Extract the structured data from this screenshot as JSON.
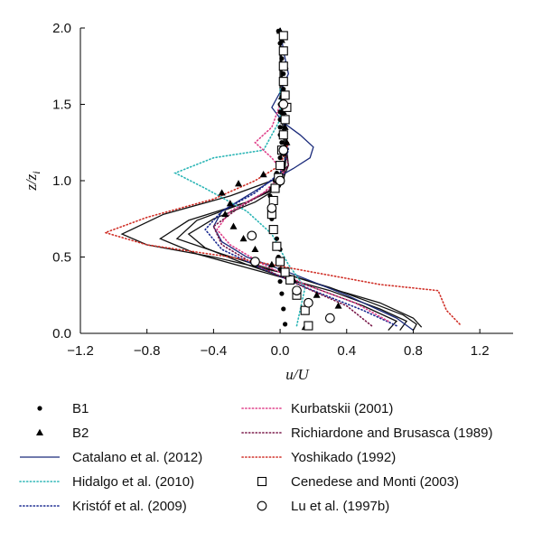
{
  "chart_data": {
    "type": "line",
    "xlabel": "u/U",
    "ylabel": "z/z_i",
    "xlim": [
      -1.2,
      1.4
    ],
    "ylim": [
      0.0,
      2.0
    ],
    "x_ticks": [
      "−1.2",
      "−0.8",
      "−0.4",
      "0.0",
      "0.4",
      "0.8",
      "1.2"
    ],
    "x_tick_values": [
      -1.2,
      -0.8,
      -0.4,
      0.0,
      0.4,
      0.8,
      1.2
    ],
    "y_ticks": [
      "0.0",
      "0.5",
      "1.0",
      "1.5",
      "2.0"
    ],
    "y_tick_values": [
      0.0,
      0.5,
      1.0,
      1.5,
      2.0
    ],
    "black_curves": [
      [
        [
          0.8,
          0.02
        ],
        [
          0.82,
          0.06
        ],
        [
          0.74,
          0.12
        ],
        [
          0.55,
          0.2
        ],
        [
          0.3,
          0.3
        ],
        [
          0.0,
          0.4
        ],
        [
          -0.4,
          0.5
        ],
        [
          -0.8,
          0.58
        ],
        [
          -0.95,
          0.65
        ],
        [
          -0.7,
          0.78
        ],
        [
          -0.3,
          0.9
        ],
        [
          -0.05,
          1.0
        ],
        [
          0.05,
          1.1
        ],
        [
          0.02,
          1.3
        ],
        [
          0.0,
          1.6
        ],
        [
          0.0,
          2.0
        ]
      ],
      [
        [
          0.72,
          0.02
        ],
        [
          0.76,
          0.08
        ],
        [
          0.6,
          0.16
        ],
        [
          0.3,
          0.28
        ],
        [
          -0.1,
          0.4
        ],
        [
          -0.5,
          0.52
        ],
        [
          -0.72,
          0.62
        ],
        [
          -0.55,
          0.74
        ],
        [
          -0.2,
          0.86
        ],
        [
          0.0,
          0.96
        ],
        [
          0.05,
          1.1
        ],
        [
          0.03,
          1.3
        ],
        [
          0.01,
          1.6
        ],
        [
          0.0,
          2.0
        ]
      ],
      [
        [
          0.65,
          0.02
        ],
        [
          0.7,
          0.08
        ],
        [
          0.5,
          0.18
        ],
        [
          0.2,
          0.3
        ],
        [
          -0.2,
          0.45
        ],
        [
          -0.45,
          0.56
        ],
        [
          -0.55,
          0.65
        ],
        [
          -0.4,
          0.75
        ],
        [
          -0.15,
          0.86
        ],
        [
          0.0,
          0.96
        ],
        [
          0.03,
          1.1
        ],
        [
          0.02,
          1.3
        ],
        [
          0.0,
          1.6
        ],
        [
          0.0,
          2.0
        ]
      ],
      [
        [
          0.85,
          0.04
        ],
        [
          0.8,
          0.1
        ],
        [
          0.6,
          0.2
        ],
        [
          0.35,
          0.28
        ],
        [
          0.0,
          0.4
        ],
        [
          -0.35,
          0.52
        ],
        [
          -0.62,
          0.62
        ],
        [
          -0.5,
          0.74
        ],
        [
          -0.2,
          0.86
        ],
        [
          0.02,
          0.98
        ],
        [
          0.04,
          1.2
        ],
        [
          0.02,
          1.5
        ],
        [
          0.0,
          2.0
        ]
      ]
    ],
    "series": [
      {
        "name": "B1",
        "marker": "dot",
        "color": "#000000",
        "x": [
          0.03,
          0.02,
          0.01,
          0.0,
          0.0,
          -0.01,
          0.0,
          -0.02,
          -0.03,
          -0.05,
          -0.05,
          -0.06,
          -0.05,
          -0.03,
          -0.02,
          -0.01,
          0.0,
          0.0,
          0.01,
          0.0,
          0.0,
          0.0,
          0.0,
          0.0,
          0.01,
          0.02,
          0.03,
          0.02,
          0.01,
          0.0,
          -0.01
        ],
        "y": [
          0.06,
          0.16,
          0.26,
          0.34,
          0.42,
          0.5,
          0.55,
          0.62,
          0.68,
          0.75,
          0.82,
          0.9,
          0.95,
          1.0,
          1.05,
          1.1,
          1.15,
          1.2,
          1.25,
          1.3,
          1.35,
          1.4,
          1.45,
          1.5,
          1.55,
          1.6,
          1.65,
          1.7,
          1.8,
          1.9,
          1.98
        ]
      },
      {
        "name": "B2",
        "marker": "triangle",
        "color": "#000000",
        "x": [
          0.15,
          0.35,
          0.22,
          0.08,
          -0.05,
          -0.15,
          -0.22,
          -0.28,
          -0.33,
          -0.3,
          -0.35,
          -0.25,
          -0.1,
          0.0,
          0.02,
          0.04,
          0.03,
          0.02,
          0.01,
          0.02,
          0.03,
          0.02,
          0.01,
          0.0
        ],
        "y": [
          0.04,
          0.18,
          0.25,
          0.35,
          0.45,
          0.55,
          0.62,
          0.7,
          0.78,
          0.85,
          0.92,
          0.98,
          1.04,
          1.1,
          1.18,
          1.25,
          1.35,
          1.45,
          1.55,
          1.65,
          1.75,
          1.85,
          1.92,
          1.98
        ]
      },
      {
        "name": "Catalano et al. (2012)",
        "style": "solid",
        "color": "#1a2a7a",
        "x": [
          0.8,
          0.7,
          0.4,
          0.1,
          -0.2,
          -0.35,
          -0.4,
          -0.35,
          -0.2,
          -0.05,
          0.08,
          0.18,
          0.2,
          0.12,
          0.02,
          -0.05,
          0.0,
          0.05,
          0.02,
          0.0
        ],
        "y": [
          0.02,
          0.1,
          0.25,
          0.38,
          0.5,
          0.6,
          0.7,
          0.8,
          0.9,
          1.0,
          1.08,
          1.15,
          1.22,
          1.3,
          1.38,
          1.48,
          1.58,
          1.7,
          1.85,
          2.0
        ]
      },
      {
        "name": "Hidalgo et al. (2010)",
        "style": "dotted",
        "color": "#2ab5b5",
        "x": [
          0.1,
          0.15,
          0.05,
          0.0,
          -0.05,
          -0.2,
          -0.45,
          -0.63,
          -0.4,
          -0.1,
          0.0,
          0.0
        ],
        "y": [
          0.05,
          0.3,
          0.45,
          0.55,
          0.65,
          0.8,
          0.95,
          1.05,
          1.15,
          1.2,
          1.4,
          1.6
        ]
      },
      {
        "name": "Kristóf et al. (2009)",
        "style": "dotted",
        "color": "#1a2a90",
        "x": [
          0.7,
          0.5,
          0.2,
          -0.1,
          -0.35,
          -0.45,
          -0.35,
          -0.15,
          0.0,
          0.05,
          0.02
        ],
        "y": [
          0.05,
          0.15,
          0.28,
          0.42,
          0.55,
          0.68,
          0.8,
          0.92,
          1.05,
          1.2,
          1.4
        ]
      },
      {
        "name": "Kurbatskii (2001)",
        "style": "dotted",
        "color": "#e0408a",
        "x": [
          0.65,
          0.45,
          0.15,
          -0.1,
          -0.3,
          -0.38,
          -0.3,
          -0.1,
          0.02,
          -0.05,
          -0.15,
          -0.05,
          0.0
        ],
        "y": [
          0.08,
          0.2,
          0.32,
          0.45,
          0.58,
          0.68,
          0.8,
          0.92,
          1.05,
          1.15,
          1.25,
          1.35,
          1.5
        ]
      },
      {
        "name": "Richiardone and Brusasca (1989)",
        "style": "dotted",
        "color": "#7a1a4a",
        "x": [
          0.55,
          0.4,
          0.15,
          -0.15,
          -0.35,
          -0.4,
          -0.25,
          -0.05,
          0.05,
          0.02
        ],
        "y": [
          0.05,
          0.18,
          0.3,
          0.45,
          0.58,
          0.7,
          0.82,
          0.95,
          1.1,
          1.25
        ]
      },
      {
        "name": "Yoshikado (1992)",
        "style": "dotted",
        "color": "#d03028",
        "x": [
          1.08,
          1.0,
          0.95,
          0.6,
          0.2,
          -0.3,
          -0.8,
          -1.05,
          -0.8,
          -0.4,
          -0.15,
          0.0,
          0.05
        ],
        "y": [
          0.06,
          0.15,
          0.28,
          0.32,
          0.4,
          0.5,
          0.58,
          0.66,
          0.76,
          0.88,
          1.0,
          1.1,
          1.25
        ]
      },
      {
        "name": "Cenedese and Monti (2003)",
        "marker": "square",
        "color": "#000000",
        "x": [
          0.17,
          0.15,
          0.1,
          0.06,
          0.03,
          0.0,
          -0.02,
          -0.04,
          -0.05,
          -0.04,
          -0.03,
          -0.01,
          0.0,
          0.01,
          0.02,
          0.03,
          0.04,
          0.03,
          0.02,
          0.02,
          0.02,
          0.02
        ],
        "y": [
          0.05,
          0.15,
          0.25,
          0.35,
          0.4,
          0.47,
          0.57,
          0.68,
          0.78,
          0.87,
          0.95,
          1.02,
          1.1,
          1.2,
          1.3,
          1.4,
          1.48,
          1.56,
          1.65,
          1.75,
          1.85,
          1.95
        ]
      },
      {
        "name": "Lu et al. (1997b)",
        "marker": "circle",
        "color": "#000000",
        "x": [
          0.3,
          0.17,
          0.1,
          -0.15,
          -0.17,
          -0.05,
          0.0,
          0.02,
          0.02
        ],
        "y": [
          0.1,
          0.2,
          0.28,
          0.47,
          0.64,
          0.82,
          1.0,
          1.2,
          1.5
        ]
      }
    ]
  }
}
